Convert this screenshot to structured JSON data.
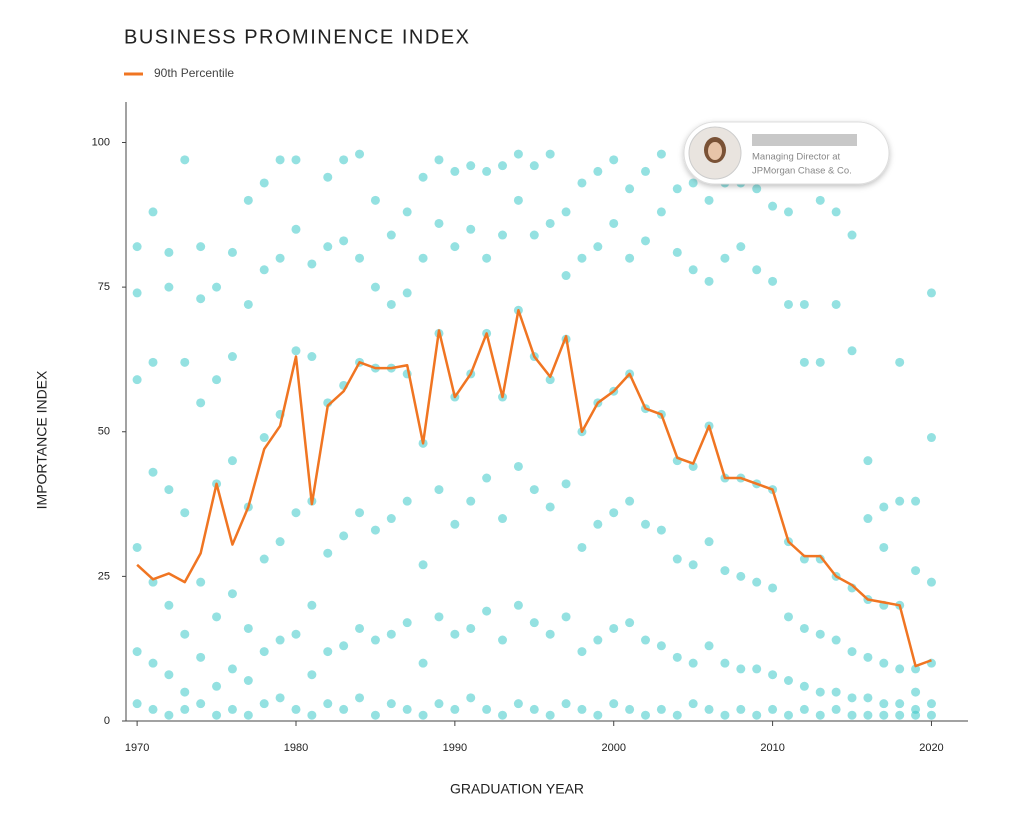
{
  "chart_data": {
    "type": "scatter",
    "title": "BUSINESS PROMINENCE INDEX",
    "x_label": "GRADUATION YEAR",
    "y_label": "IMPORTANCE INDEX",
    "xlim": [
      1969.3,
      2022.3
    ],
    "ylim": [
      0,
      107
    ],
    "xticks": [
      1970,
      1980,
      1990,
      2000,
      2010,
      2020
    ],
    "yticks": [
      0,
      25,
      50,
      75,
      100
    ],
    "grid": false,
    "legend": "top-left",
    "annotation": [
      "Managing Director at",
      "JPMorgan Chase & Co."
    ],
    "x": [
      1970,
      1971,
      1972,
      1973,
      1974,
      1975,
      1976,
      1977,
      1978,
      1979,
      1980,
      1981,
      1982,
      1983,
      1984,
      1985,
      1986,
      1987,
      1988,
      1989,
      1990,
      1991,
      1992,
      1993,
      1994,
      1995,
      1996,
      1997,
      1998,
      1999,
      2000,
      2001,
      2002,
      2003,
      2004,
      2005,
      2006,
      2007,
      2008,
      2009,
      2010,
      2011,
      2012,
      2013,
      2014,
      2015,
      2016,
      2017,
      2018,
      2019,
      2020
    ],
    "series": [
      {
        "name": "90th Percentile",
        "type": "line",
        "color": "#f07522",
        "values": [
          27,
          24.5,
          25.5,
          24,
          29,
          41,
          30.5,
          37,
          47,
          51,
          63,
          37.5,
          54.5,
          57,
          62,
          61,
          61,
          61.5,
          48,
          67.5,
          56,
          60,
          67,
          56,
          71,
          63,
          59.5,
          66.5,
          50,
          55,
          57,
          60,
          54,
          53,
          45.5,
          44.5,
          51,
          42,
          42,
          41,
          40,
          31,
          28.5,
          28.5,
          25,
          23.5,
          21,
          20.5,
          20,
          9.5,
          10.5
        ]
      },
      {
        "type": "dots",
        "color": "#3cc8c8",
        "values": [
          [
            82,
            74,
            59,
            30,
            12,
            3
          ],
          [
            88,
            62,
            43,
            24,
            10,
            2
          ],
          [
            81,
            75,
            40,
            20,
            8,
            1
          ],
          [
            97,
            62,
            36,
            15,
            5,
            2
          ],
          [
            82,
            73,
            55,
            24,
            11,
            3
          ],
          [
            75,
            59,
            41,
            18,
            6,
            1
          ],
          [
            81,
            63,
            45,
            22,
            9,
            2
          ],
          [
            90,
            72,
            37,
            16,
            7,
            1
          ],
          [
            93,
            78,
            49,
            28,
            12,
            3
          ],
          [
            97,
            80,
            53,
            31,
            14,
            4
          ],
          [
            97,
            85,
            64,
            36,
            15,
            2
          ],
          [
            79,
            63,
            38,
            20,
            8,
            1
          ],
          [
            94,
            82,
            55,
            29,
            12,
            3
          ],
          [
            97,
            83,
            58,
            32,
            13,
            2
          ],
          [
            98,
            80,
            62,
            36,
            16,
            4
          ],
          [
            90,
            75,
            61,
            33,
            14,
            1
          ],
          [
            84,
            72,
            61,
            35,
            15,
            3
          ],
          [
            88,
            74,
            60,
            38,
            17,
            2
          ],
          [
            94,
            80,
            48,
            27,
            10,
            1
          ],
          [
            97,
            86,
            67,
            40,
            18,
            3
          ],
          [
            95,
            82,
            56,
            34,
            15,
            2
          ],
          [
            96,
            85,
            60,
            38,
            16,
            4
          ],
          [
            95,
            80,
            67,
            42,
            19,
            2
          ],
          [
            96,
            84,
            56,
            35,
            14,
            1
          ],
          [
            98,
            90,
            71,
            44,
            20,
            3
          ],
          [
            96,
            84,
            63,
            40,
            17,
            2
          ],
          [
            98,
            86,
            59,
            37,
            15,
            1
          ],
          [
            88,
            77,
            66,
            41,
            18,
            3
          ],
          [
            93,
            80,
            50,
            30,
            12,
            2
          ],
          [
            95,
            82,
            55,
            34,
            14,
            1
          ],
          [
            97,
            86,
            57,
            36,
            16,
            3
          ],
          [
            92,
            80,
            60,
            38,
            17,
            2
          ],
          [
            95,
            83,
            54,
            34,
            14,
            1
          ],
          [
            98,
            88,
            53,
            33,
            13,
            2
          ],
          [
            92,
            81,
            45,
            28,
            11,
            1
          ],
          [
            93,
            78,
            44,
            27,
            10,
            3
          ],
          [
            90,
            76,
            51,
            31,
            13,
            2
          ],
          [
            93,
            80,
            42,
            26,
            10,
            1
          ],
          [
            93,
            82,
            42,
            25,
            9,
            2
          ],
          [
            92,
            78,
            41,
            24,
            9,
            1
          ],
          [
            89,
            76,
            40,
            23,
            8,
            2
          ],
          [
            88,
            72,
            31,
            18,
            7,
            1
          ],
          [
            72,
            62,
            28,
            16,
            6,
            2
          ],
          [
            90,
            62,
            28,
            15,
            5,
            1
          ],
          [
            88,
            72,
            25,
            14,
            5,
            2
          ],
          [
            84,
            64,
            23,
            12,
            4,
            1
          ],
          [
            45,
            35,
            21,
            11,
            4,
            1
          ],
          [
            37,
            30,
            20,
            10,
            3,
            1
          ],
          [
            62,
            38,
            20,
            9,
            3,
            1
          ],
          [
            38,
            26,
            9,
            5,
            2,
            1
          ],
          [
            74,
            49,
            24,
            10,
            3,
            1
          ]
        ]
      }
    ]
  }
}
